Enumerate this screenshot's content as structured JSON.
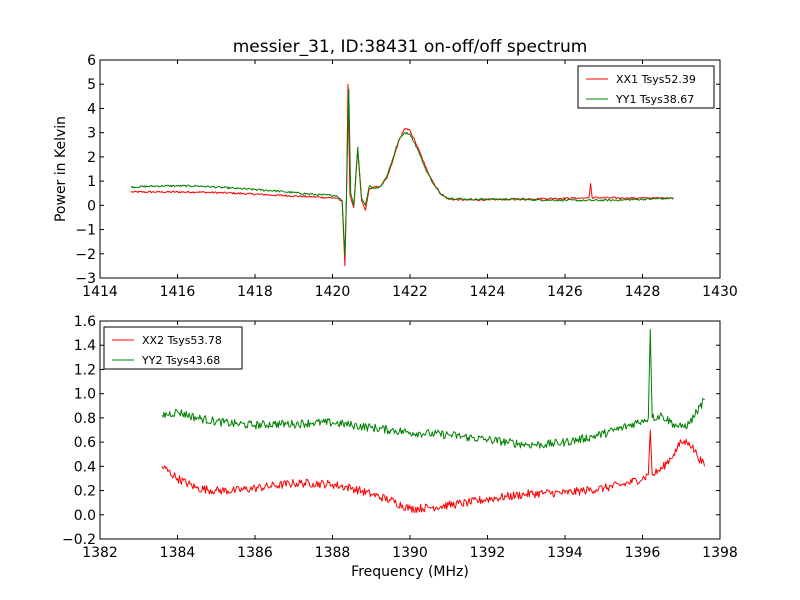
{
  "chart_data": [
    {
      "type": "line",
      "title": "messier_31, ID:38431 on-off/off spectrum",
      "xlabel": "",
      "ylabel": "Power in Kelvin",
      "xlim": [
        1414,
        1430
      ],
      "ylim": [
        -3,
        6
      ],
      "xticks": [
        1414,
        1416,
        1418,
        1420,
        1422,
        1424,
        1426,
        1428,
        1430
      ],
      "yticks": [
        -3,
        -2,
        -1,
        0,
        1,
        2,
        3,
        4,
        5,
        6
      ],
      "legend_position": "top-right",
      "grid": false,
      "series": [
        {
          "name": "XX1 Tsys52.39",
          "color": "#ff0000",
          "points": [
            [
              1414.8,
              0.55
            ],
            [
              1415.5,
              0.55
            ],
            [
              1416.5,
              0.55
            ],
            [
              1417.5,
              0.5
            ],
            [
              1418.5,
              0.42
            ],
            [
              1419.5,
              0.35
            ],
            [
              1420.1,
              0.3
            ],
            [
              1420.25,
              0.15
            ],
            [
              1420.32,
              -2.5
            ],
            [
              1420.36,
              0.3
            ],
            [
              1420.4,
              5.0
            ],
            [
              1420.45,
              0.4
            ],
            [
              1420.55,
              -0.1
            ],
            [
              1420.65,
              2.3
            ],
            [
              1420.75,
              0.2
            ],
            [
              1420.85,
              -0.2
            ],
            [
              1420.95,
              0.7
            ],
            [
              1421.1,
              0.75
            ],
            [
              1421.25,
              0.8
            ],
            [
              1421.4,
              1.1
            ],
            [
              1421.55,
              1.8
            ],
            [
              1421.7,
              2.6
            ],
            [
              1421.85,
              3.15
            ],
            [
              1422.0,
              3.1
            ],
            [
              1422.2,
              2.4
            ],
            [
              1422.4,
              1.6
            ],
            [
              1422.6,
              0.95
            ],
            [
              1422.8,
              0.45
            ],
            [
              1423.0,
              0.25
            ],
            [
              1423.5,
              0.22
            ],
            [
              1424.5,
              0.25
            ],
            [
              1425.5,
              0.28
            ],
            [
              1426.5,
              0.3
            ],
            [
              1426.62,
              0.32
            ],
            [
              1426.66,
              0.9
            ],
            [
              1426.7,
              0.32
            ],
            [
              1427.5,
              0.3
            ],
            [
              1428.3,
              0.3
            ],
            [
              1428.8,
              0.3
            ]
          ]
        },
        {
          "name": "YY1 Tsys38.67",
          "color": "#008000",
          "points": [
            [
              1414.8,
              0.75
            ],
            [
              1415.5,
              0.8
            ],
            [
              1416.5,
              0.8
            ],
            [
              1417.5,
              0.7
            ],
            [
              1418.5,
              0.6
            ],
            [
              1419.5,
              0.45
            ],
            [
              1420.1,
              0.4
            ],
            [
              1420.25,
              0.2
            ],
            [
              1420.32,
              -2.1
            ],
            [
              1420.36,
              0.4
            ],
            [
              1420.42,
              4.8
            ],
            [
              1420.47,
              0.5
            ],
            [
              1420.55,
              0.0
            ],
            [
              1420.65,
              2.4
            ],
            [
              1420.75,
              0.3
            ],
            [
              1420.85,
              0.0
            ],
            [
              1420.95,
              0.8
            ],
            [
              1421.1,
              0.7
            ],
            [
              1421.25,
              0.8
            ],
            [
              1421.4,
              1.2
            ],
            [
              1421.55,
              1.9
            ],
            [
              1421.7,
              2.65
            ],
            [
              1421.85,
              3.0
            ],
            [
              1422.0,
              2.95
            ],
            [
              1422.2,
              2.3
            ],
            [
              1422.4,
              1.5
            ],
            [
              1422.6,
              0.9
            ],
            [
              1422.8,
              0.45
            ],
            [
              1423.0,
              0.3
            ],
            [
              1423.5,
              0.25
            ],
            [
              1424.5,
              0.25
            ],
            [
              1425.5,
              0.22
            ],
            [
              1426.5,
              0.2
            ],
            [
              1427.5,
              0.22
            ],
            [
              1428.3,
              0.27
            ],
            [
              1428.8,
              0.3
            ]
          ]
        }
      ]
    },
    {
      "type": "line",
      "title": "",
      "xlabel": "Frequency (MHz)",
      "ylabel": "",
      "xlim": [
        1382,
        1398
      ],
      "ylim": [
        -0.2,
        1.6
      ],
      "xticks": [
        1382,
        1384,
        1386,
        1388,
        1390,
        1392,
        1394,
        1396,
        1398
      ],
      "yticks": [
        -0.2,
        0.0,
        0.2,
        0.4,
        0.6,
        0.8,
        1.0,
        1.2,
        1.4,
        1.6
      ],
      "legend_position": "top-left",
      "grid": false,
      "series": [
        {
          "name": "XX2 Tsys53.78",
          "color": "#ff0000",
          "points": [
            [
              1383.6,
              0.4
            ],
            [
              1384.0,
              0.3
            ],
            [
              1384.5,
              0.22
            ],
            [
              1385.0,
              0.2
            ],
            [
              1385.5,
              0.2
            ],
            [
              1386.0,
              0.22
            ],
            [
              1386.5,
              0.24
            ],
            [
              1387.0,
              0.26
            ],
            [
              1387.5,
              0.26
            ],
            [
              1388.0,
              0.25
            ],
            [
              1388.5,
              0.22
            ],
            [
              1389.0,
              0.17
            ],
            [
              1389.5,
              0.12
            ],
            [
              1390.0,
              0.05
            ],
            [
              1390.5,
              0.06
            ],
            [
              1391.0,
              0.08
            ],
            [
              1391.5,
              0.1
            ],
            [
              1392.0,
              0.13
            ],
            [
              1392.5,
              0.15
            ],
            [
              1393.0,
              0.17
            ],
            [
              1393.5,
              0.18
            ],
            [
              1394.0,
              0.18
            ],
            [
              1394.5,
              0.2
            ],
            [
              1395.0,
              0.22
            ],
            [
              1395.5,
              0.25
            ],
            [
              1396.0,
              0.3
            ],
            [
              1396.15,
              0.33
            ],
            [
              1396.2,
              0.7
            ],
            [
              1396.25,
              0.33
            ],
            [
              1396.5,
              0.38
            ],
            [
              1396.8,
              0.5
            ],
            [
              1397.0,
              0.6
            ],
            [
              1397.2,
              0.6
            ],
            [
              1397.4,
              0.5
            ],
            [
              1397.6,
              0.4
            ]
          ]
        },
        {
          "name": "YY2 Tsys43.68",
          "color": "#008000",
          "points": [
            [
              1383.6,
              0.82
            ],
            [
              1384.0,
              0.85
            ],
            [
              1384.5,
              0.8
            ],
            [
              1385.0,
              0.77
            ],
            [
              1385.5,
              0.75
            ],
            [
              1386.0,
              0.74
            ],
            [
              1386.5,
              0.75
            ],
            [
              1387.0,
              0.75
            ],
            [
              1387.5,
              0.76
            ],
            [
              1388.0,
              0.76
            ],
            [
              1388.5,
              0.74
            ],
            [
              1389.0,
              0.72
            ],
            [
              1389.5,
              0.7
            ],
            [
              1390.0,
              0.68
            ],
            [
              1390.5,
              0.67
            ],
            [
              1391.0,
              0.66
            ],
            [
              1391.5,
              0.64
            ],
            [
              1392.0,
              0.62
            ],
            [
              1392.5,
              0.6
            ],
            [
              1393.0,
              0.58
            ],
            [
              1393.5,
              0.58
            ],
            [
              1394.0,
              0.6
            ],
            [
              1394.5,
              0.63
            ],
            [
              1395.0,
              0.67
            ],
            [
              1395.5,
              0.72
            ],
            [
              1396.0,
              0.78
            ],
            [
              1396.15,
              0.8
            ],
            [
              1396.2,
              1.53
            ],
            [
              1396.25,
              0.8
            ],
            [
              1396.5,
              0.82
            ],
            [
              1396.8,
              0.75
            ],
            [
              1397.0,
              0.72
            ],
            [
              1397.2,
              0.75
            ],
            [
              1397.4,
              0.85
            ],
            [
              1397.6,
              0.95
            ]
          ]
        }
      ]
    }
  ]
}
